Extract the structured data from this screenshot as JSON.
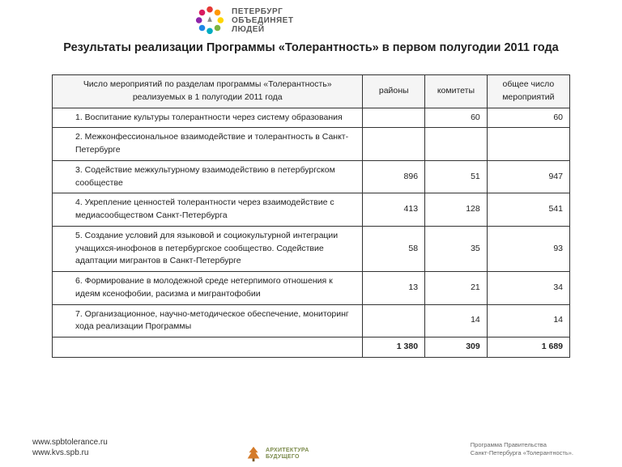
{
  "header": {
    "logo_line1": "ПЕТЕРБУРГ",
    "logo_line2": "ОБЪЕДИНЯЕТ",
    "logo_line3": "ЛЮДЕЙ",
    "logo_colors": [
      "#e53935",
      "#ff9800",
      "#ffd600",
      "#7cb342",
      "#00acc1",
      "#1e88e5",
      "#8e24aa",
      "#d81b60"
    ]
  },
  "title": "Результаты реализации Программы «Толерантность» в первом полугодии 2011 года",
  "table": {
    "columns": [
      "Число мероприятий по разделам программы «Толерантность» реализуемых в 1 полугодии 2011 года",
      "районы",
      "комитеты",
      "общее число мероприятий"
    ],
    "col_widths_pct": [
      60,
      12,
      12,
      16
    ],
    "header_bg": "#f5f5f5",
    "border_color": "#333333",
    "font_size_pt": 8,
    "rows": [
      {
        "desc": "1. Воспитание культуры толерантности через систему образования",
        "v1": "",
        "v2": "60",
        "v3": "60"
      },
      {
        "desc": "2. Межконфессиональное взаимодействие и толерантность в Санкт-Петербурге",
        "v1": "",
        "v2": "",
        "v3": ""
      },
      {
        "desc": "3. Содействие межкультурному взаимодействию в петербургском сообществе",
        "v1": "896",
        "v2": "51",
        "v3": "947"
      },
      {
        "desc": "4. Укрепление ценностей толерантности через взаимодействие с медиасообществом Санкт-Петербурга",
        "v1": "413",
        "v2": "128",
        "v3": "541"
      },
      {
        "desc": "5. Создание условий для языковой и социокультурной интеграции учащихся-инофонов в петербургское сообщество. Содействие адаптации мигрантов в Санкт-Петербурге",
        "v1": "58",
        "v2": "35",
        "v3": "93"
      },
      {
        "desc": "6.  Формирование в молодежной среде нетерпимого отношения к идеям ксенофобии, расизма и мигрантофобии",
        "v1": "13",
        "v2": "21",
        "v3": "34"
      },
      {
        "desc": "7. Организационное, научно-методическое обеспечение, мониторинг хода реализации Программы",
        "v1": "",
        "v2": "14",
        "v3": "14"
      }
    ],
    "total": {
      "desc": "",
      "v1": "1 380",
      "v2": "309",
      "v3": "1 689"
    }
  },
  "footer": {
    "url1": "www.spbtolerance.ru",
    "url2": "www.kvs.spb.ru",
    "logo_line1": "АРХИТЕКТУРА",
    "logo_line2": "БУДУЩЕГО",
    "logo_tree_color": "#d47b2a",
    "logo_text_color": "#7b8a4a",
    "right_line1": "Программа Правительства",
    "right_line2": "Санкт-Петербурга «Толерантность»."
  }
}
